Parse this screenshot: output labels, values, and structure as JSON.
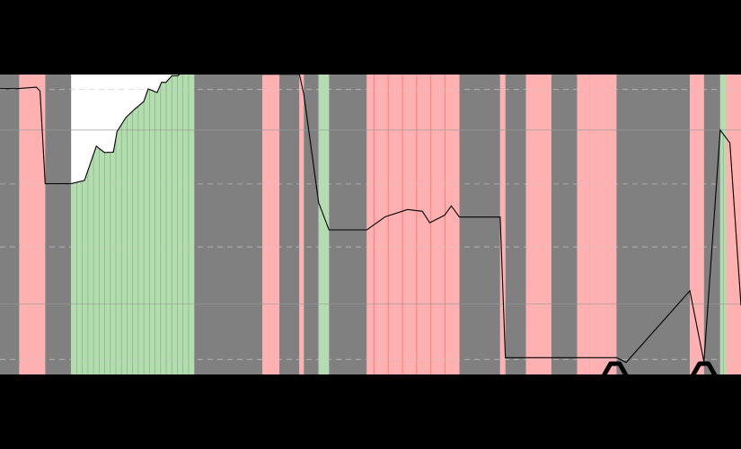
{
  "chart_data": {
    "type": "area",
    "title": "",
    "xlabel": "",
    "ylabel": "",
    "xlim": [
      0,
      100
    ],
    "ylim": [
      0,
      100
    ],
    "grid": true,
    "colors": {
      "figure_bg": "#000000",
      "plot_bg": "#ffffff",
      "gray_band": "#808080",
      "red_band": "#ffb0b0",
      "red_stripe": "#ff6e6e",
      "green_fill": "#b5dcb1",
      "green_stripe": "#78b878",
      "line": "#000000",
      "grid_dashed": "#c8c8c8",
      "grid_solid": "#9a9a9a"
    },
    "gridlines": [
      {
        "y": 95,
        "style": "dashed"
      },
      {
        "y": 81.5,
        "style": "solid"
      },
      {
        "y": 63.5,
        "style": "dashed"
      },
      {
        "y": 42.5,
        "style": "dashed"
      },
      {
        "y": 23.5,
        "style": "solid"
      },
      {
        "y": 5,
        "style": "dashed"
      }
    ],
    "bands": [
      {
        "x0": 0,
        "x1": 2.6,
        "kind": "gray"
      },
      {
        "x0": 2.6,
        "x1": 6.1,
        "kind": "red"
      },
      {
        "x0": 6.1,
        "x1": 9.6,
        "kind": "gray"
      },
      {
        "x0": 35.4,
        "x1": 37.7,
        "kind": "red"
      },
      {
        "x0": 37.7,
        "x1": 40.4,
        "kind": "gray"
      },
      {
        "x0": 40.4,
        "x1": 41.0,
        "kind": "red"
      },
      {
        "x0": 41.0,
        "x1": 43.0,
        "kind": "gray"
      },
      {
        "x0": 43.0,
        "x1": 44.4,
        "kind": "green"
      },
      {
        "x0": 44.4,
        "x1": 49.5,
        "kind": "gray"
      },
      {
        "x0": 49.5,
        "x1": 62.0,
        "kind": "red"
      },
      {
        "x0": 62.0,
        "x1": 67.5,
        "kind": "gray"
      },
      {
        "x0": 67.5,
        "x1": 68.2,
        "kind": "red"
      },
      {
        "x0": 68.2,
        "x1": 71.0,
        "kind": "gray"
      },
      {
        "x0": 71.0,
        "x1": 74.4,
        "kind": "red"
      },
      {
        "x0": 74.4,
        "x1": 77.9,
        "kind": "gray"
      },
      {
        "x0": 77.9,
        "x1": 79.6,
        "kind": "red"
      },
      {
        "x0": 79.6,
        "x1": 83.2,
        "kind": "gray"
      },
      {
        "x0": 83.2,
        "x1": 93.1,
        "kind": "gray"
      },
      {
        "x0": 93.1,
        "x1": 95.0,
        "kind": "red"
      },
      {
        "x0": 95.0,
        "x1": 97.2,
        "kind": "gray"
      },
      {
        "x0": 97.2,
        "x1": 98.0,
        "kind": "green"
      },
      {
        "x0": 98.0,
        "x1": 100,
        "kind": "red"
      }
    ],
    "extra_bands": [
      {
        "x0": 26.2,
        "x1": 35.4,
        "kind": "gray"
      },
      {
        "x0": 79.6,
        "x1": 83.2,
        "kind": "red"
      }
    ],
    "green_fill_regions": [
      {
        "x0": 9.6,
        "x1": 26.2
      },
      {
        "x0": 97.2,
        "x1": 98.0
      }
    ],
    "series": [
      {
        "x": [
          0,
          2.3,
          4.9,
          5.4,
          6.1,
          9.6,
          11.4,
          13.0,
          14.1,
          15.3,
          15.8,
          17.0,
          18.2,
          19.4,
          20.0,
          21.2,
          21.8,
          22.4,
          23.2,
          24.0,
          24.6,
          25.2,
          26.2,
          26.9,
          29.0,
          35.4,
          40.4,
          41.0,
          43.0,
          44.4,
          49.5,
          52.0,
          55.0,
          57.0,
          58.0,
          60.0,
          60.9,
          62.0,
          67.5,
          68.2,
          79.6,
          81.0,
          83.2,
          84.5,
          93.1,
          95.0,
          97.2,
          98.5,
          100
        ],
        "values": [
          95.3,
          95.3,
          95.8,
          94.5,
          63.6,
          63.6,
          64.7,
          76.1,
          74.0,
          74.1,
          81.0,
          85.7,
          88.5,
          91.0,
          95.2,
          94.0,
          97.4,
          97.4,
          99.6,
          99.6,
          100.9,
          100.9,
          101.2,
          103.0,
          102.5,
          100.1,
          100.1,
          93.4,
          57.3,
          48.2,
          48.2,
          52.6,
          55.0,
          54.4,
          50.6,
          53.1,
          56.2,
          52.5,
          52.5,
          5.6,
          5.6,
          5.6,
          5.6,
          4.0,
          27.9,
          4.2,
          81.5,
          77.2,
          23.0
        ]
      }
    ],
    "markers": [
      {
        "x": 83.0,
        "y": 0,
        "shape": "triangle-outline"
      },
      {
        "x": 95.0,
        "y": 0,
        "shape": "triangle-outline"
      }
    ]
  }
}
